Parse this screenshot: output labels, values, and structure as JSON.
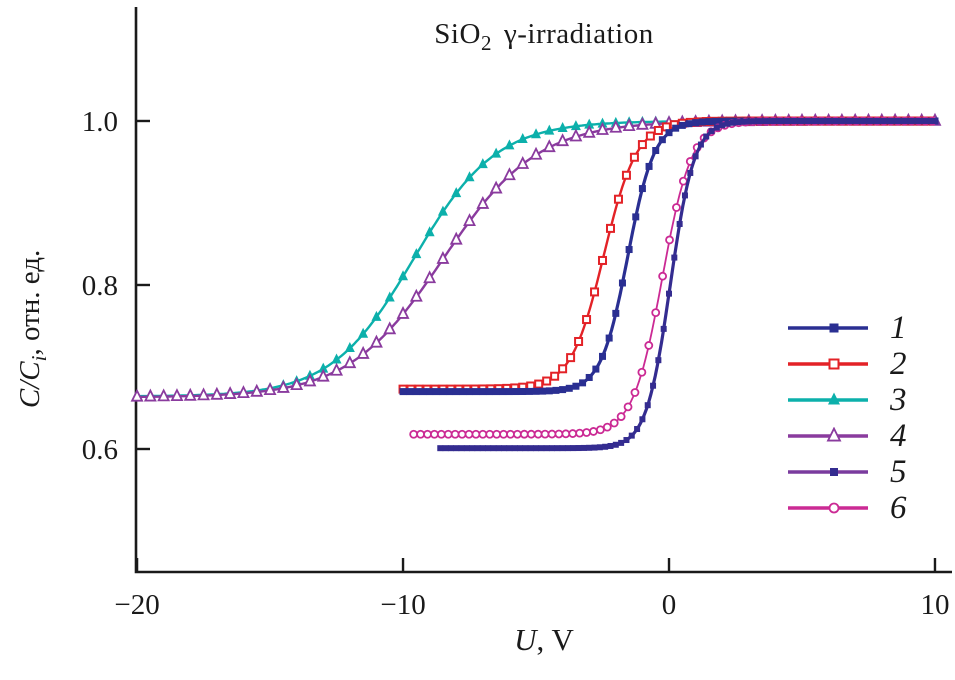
{
  "page": {
    "background": "#ffffff",
    "text_color": "#1a1a1a"
  },
  "chart": {
    "title": {
      "main": "SiO",
      "sub": "2",
      "rest": "γ-irradiation"
    },
    "ylabel": {
      "var": "C/C",
      "var_sub": "i",
      "units": ", отн. ед."
    },
    "xlabel": {
      "var": "U",
      "units": ", V"
    }
  },
  "chart_data": {
    "type": "line",
    "title": "SiO2 γ-irradiation",
    "xlabel": "U, V",
    "ylabel": "C/Ci, отн. ед.",
    "grid": false,
    "legend_position": "right-middle",
    "x_axis": {
      "min": -20.04,
      "max": 10.64,
      "ticks": [
        -20,
        -10,
        0,
        10
      ],
      "tick_labels": [
        "−20",
        "−10",
        "0",
        "10"
      ]
    },
    "y_axis": {
      "min": 0.45,
      "max": 1.139,
      "ticks": [
        0.6,
        0.8,
        1.0
      ],
      "tick_labels": [
        "0.6",
        "0.8",
        "1.0"
      ]
    },
    "model": "sigmoid C-V curves: v(U) = plateau_value + (saturation_value - plateau_value) / (1 + exp(-(U - transition_center)/transition_width))",
    "series": [
      {
        "label": "1",
        "color": "#2a2f92",
        "legend_line_color": "#2a2f92",
        "marker": "square-filled",
        "marker_size": 7,
        "plateau_value": 0.67,
        "saturation_value": 1.0,
        "transition_center": -1.55,
        "transition_width": 0.5,
        "u_min": -10.0,
        "u_max": 10.0,
        "marker_step": 0.25,
        "line_width": 3.2,
        "z": 4
      },
      {
        "label": "2",
        "color": "#e32227",
        "legend_line_color": "#e32227",
        "marker": "square-open",
        "marker_size": 7,
        "plateau_value": 0.673,
        "saturation_value": 1.0,
        "transition_center": -2.45,
        "transition_width": 0.62,
        "u_min": -10.0,
        "u_max": 10.0,
        "marker_step": 0.3,
        "line_width": 2.4,
        "z": 3
      },
      {
        "label": "3",
        "color": "#0cb0ab",
        "legend_line_color": "#0cb0ab",
        "marker": "triangle-filled",
        "marker_size": 10,
        "plateau_value": 0.664,
        "saturation_value": 1.0,
        "transition_center": -9.6,
        "transition_width": 1.55,
        "u_min": -20.0,
        "u_max": 7.2,
        "marker_step": 0.5,
        "line_width": 2.4,
        "z": 1
      },
      {
        "label": "4",
        "color": "#8a3b9e",
        "legend_line_color": "#8a3b9e",
        "marker": "triangle-open",
        "marker_size": 10,
        "plateau_value": 0.663,
        "saturation_value": 1.0,
        "transition_center": -8.5,
        "transition_width": 1.78,
        "u_min": -20.0,
        "u_max": 10.0,
        "marker_step": 0.5,
        "line_width": 2.4,
        "z": 2
      },
      {
        "label": "5",
        "color": "#342c90",
        "legend_line_color": "#7a3b9e",
        "marker": "square-filled",
        "marker_size": 6,
        "plateau_value": 0.601,
        "saturation_value": 1.0,
        "transition_center": 0.05,
        "transition_width": 0.45,
        "u_min": -8.6,
        "u_max": 10.0,
        "marker_step": 0.2,
        "line_width": 3.2,
        "z": 6
      },
      {
        "label": "6",
        "color": "#cb2a94",
        "legend_line_color": "#cb2a94",
        "marker": "circle-open",
        "marker_size": 7,
        "plateau_value": 0.618,
        "saturation_value": 1.0,
        "transition_center": -0.25,
        "transition_width": 0.55,
        "u_min": -9.6,
        "u_max": 10.0,
        "marker_step": 0.26,
        "line_width": 1.8,
        "z": 5
      }
    ],
    "axis_color": "#1a1a1a"
  }
}
